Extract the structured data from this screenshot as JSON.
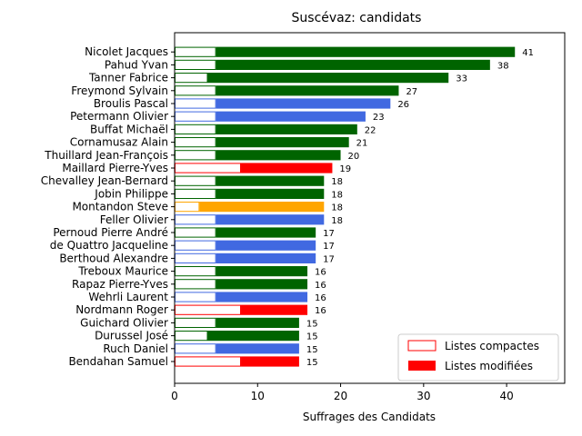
{
  "chart_data": {
    "type": "bar",
    "orientation": "horizontal",
    "stacked": true,
    "title": "Suscévaz: candidats",
    "xlabel": "Suffrages des Candidats",
    "ylabel": "",
    "xlim": [
      0,
      47
    ],
    "xticks": [
      0,
      10,
      20,
      30,
      40
    ],
    "grid": false,
    "legend": {
      "position": "lower-right",
      "entries": [
        {
          "label": "Listes compactes",
          "style": "outline",
          "color": "#ff0000"
        },
        {
          "label": "Listes modifiées",
          "style": "filled",
          "color": "#ff0000"
        }
      ]
    },
    "categories": [
      "Nicolet Jacques",
      "Pahud Yvan",
      "Tanner Fabrice",
      "Freymond Sylvain",
      "Broulis Pascal",
      "Petermann Olivier",
      "Buffat Michaël",
      "Cornamusaz Alain",
      "Thuillard Jean-François",
      "Maillard Pierre-Yves",
      "Chevalley Jean-Bernard",
      "Jobin Philippe",
      "Montandon Steve",
      "Feller Olivier",
      "Pernoud Pierre André",
      "de Quattro Jacqueline",
      "Berthoud Alexandre",
      "Treboux Maurice",
      "Rapaz Pierre-Yves",
      "Wehrli Laurent",
      "Nordmann Roger",
      "Guichard Olivier",
      "Durussel José",
      "Ruch Daniel",
      "Bendahan Samuel"
    ],
    "colors": [
      "#006400",
      "#006400",
      "#006400",
      "#006400",
      "#4169e1",
      "#4169e1",
      "#006400",
      "#006400",
      "#006400",
      "#ff0000",
      "#006400",
      "#006400",
      "#ffa500",
      "#4169e1",
      "#006400",
      "#4169e1",
      "#4169e1",
      "#006400",
      "#006400",
      "#4169e1",
      "#ff0000",
      "#006400",
      "#006400",
      "#4169e1",
      "#ff0000"
    ],
    "series": [
      {
        "name": "Listes compactes",
        "values": [
          5,
          5,
          4,
          5,
          5,
          5,
          5,
          5,
          5,
          8,
          5,
          5,
          3,
          5,
          5,
          5,
          5,
          5,
          5,
          5,
          8,
          5,
          4,
          5,
          8
        ]
      },
      {
        "name": "Listes modifiées",
        "values": [
          36,
          33,
          29,
          22,
          21,
          18,
          17,
          16,
          15,
          11,
          13,
          13,
          15,
          13,
          12,
          12,
          12,
          11,
          11,
          11,
          8,
          10,
          11,
          10,
          7
        ]
      }
    ],
    "totals": [
      41,
      38,
      33,
      27,
      26,
      23,
      22,
      21,
      20,
      19,
      18,
      18,
      18,
      18,
      17,
      17,
      17,
      16,
      16,
      16,
      16,
      15,
      15,
      15,
      15
    ]
  }
}
